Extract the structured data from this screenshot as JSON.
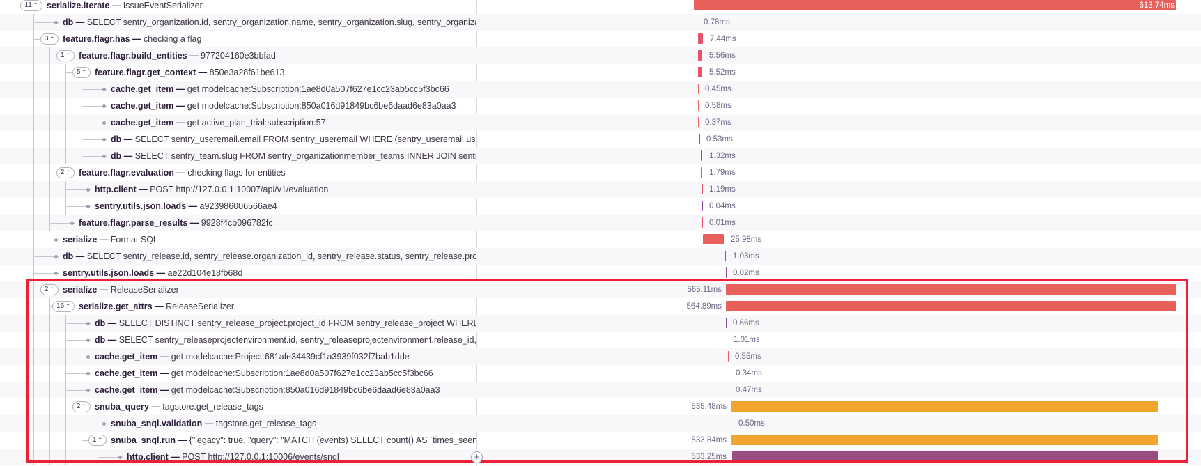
{
  "colors": {
    "red": "#e9605a",
    "pink": "#e45369",
    "purple": "#8a4d9e",
    "orange": "#f2a52e",
    "magenta": "#9a4d82",
    "highlight": "#ed2136"
  },
  "rows": [
    {
      "count": "11",
      "op": "serialize.iterate",
      "desc": "IssueEventSerializer",
      "dur": "613.74ms",
      "color": "red"
    },
    {
      "count": "",
      "op": "db",
      "desc": "SELECT sentry_organization.id, sentry_organization.name, sentry_organization.slug, sentry_organization.status",
      "dur": "0.78ms",
      "color": "purple"
    },
    {
      "count": "3",
      "op": "feature.flagr.has",
      "desc": "checking a flag",
      "dur": "7.44ms",
      "color": "pink"
    },
    {
      "count": "1",
      "op": "feature.flagr.build_entities",
      "desc": "977204160e3bbfad",
      "dur": "5.56ms",
      "color": "pink"
    },
    {
      "count": "5",
      "op": "feature.flagr.get_context",
      "desc": "850e3a28f61be613",
      "dur": "5.52ms",
      "color": "pink"
    },
    {
      "count": "",
      "op": "cache.get_item",
      "desc": "get modelcache:Subscription:1ae8d0a507f627e1cc23ab5cc5f3bc66",
      "dur": "0.45ms",
      "color": "red"
    },
    {
      "count": "",
      "op": "cache.get_item",
      "desc": "get modelcache:Subscription:850a016d91849bc6be6daad6e83a0aa3",
      "dur": "0.58ms",
      "color": "red"
    },
    {
      "count": "",
      "op": "cache.get_item",
      "desc": "get active_plan_trial:subscription:57",
      "dur": "0.37ms",
      "color": "red"
    },
    {
      "count": "",
      "op": "db",
      "desc": "SELECT sentry_useremail.email FROM sentry_useremail WHERE (sentry_useremail.user_id = %s AND sentry_useremail.is_verified)",
      "dur": "0.53ms",
      "color": "purple"
    },
    {
      "count": "",
      "op": "db",
      "desc": "SELECT sentry_team.slug FROM sentry_organizationmember_teams INNER JOIN sentry_team ON (sentry_organizationmember_teams.team_id)",
      "dur": "1.32ms",
      "color": "purple"
    },
    {
      "count": "2",
      "op": "feature.flagr.evaluation",
      "desc": "checking flags for entities",
      "dur": "1.79ms",
      "color": "pink"
    },
    {
      "count": "",
      "op": "http.client",
      "desc": "POST http://127.0.0.1:10007/api/v1/evaluation",
      "dur": "1.19ms",
      "color": "pink"
    },
    {
      "count": "",
      "op": "sentry.utils.json.loads",
      "desc": "a923986006566ae4",
      "dur": "0.04ms",
      "color": "purple"
    },
    {
      "count": "",
      "op": "feature.flagr.parse_results",
      "desc": "9928f4cb096782fc",
      "dur": "0.01ms",
      "color": "pink"
    },
    {
      "count": "",
      "op": "serialize",
      "desc": "Format SQL",
      "dur": "25.98ms",
      "color": "red"
    },
    {
      "count": "",
      "op": "db",
      "desc": "SELECT sentry_release.id, sentry_release.organization_id, sentry_release.status, sentry_release.project_id",
      "dur": "1.03ms",
      "color": "purple"
    },
    {
      "count": "",
      "op": "sentry.utils.json.loads",
      "desc": "ae22d104e18fb68d",
      "dur": "0.02ms",
      "color": "purple"
    },
    {
      "count": "2",
      "op": "serialize",
      "desc": "ReleaseSerializer",
      "dur": "565.11ms",
      "color": "red"
    },
    {
      "count": "16",
      "op": "serialize.get_attrs",
      "desc": "ReleaseSerializer",
      "dur": "564.89ms",
      "color": "red"
    },
    {
      "count": "",
      "op": "db",
      "desc": "SELECT DISTINCT sentry_release_project.project_id FROM sentry_release_project WHERE sentry_release_project.release_id",
      "dur": "0.66ms",
      "color": "purple"
    },
    {
      "count": "",
      "op": "db",
      "desc": "SELECT sentry_releaseprojectenvironment.id, sentry_releaseprojectenvironment.release_id, sentry_releaseprojectenvironment",
      "dur": "1.01ms",
      "color": "purple"
    },
    {
      "count": "",
      "op": "cache.get_item",
      "desc": "get modelcache:Project:681afe34439cf1a3939f032f7bab1dde",
      "dur": "0.55ms",
      "color": "red"
    },
    {
      "count": "",
      "op": "cache.get_item",
      "desc": "get modelcache:Subscription:1ae8d0a507f627e1cc23ab5cc5f3bc66",
      "dur": "0.34ms",
      "color": "red"
    },
    {
      "count": "",
      "op": "cache.get_item",
      "desc": "get modelcache:Subscription:850a016d91849bc6be6daad6e83a0aa3",
      "dur": "0.47ms",
      "color": "red"
    },
    {
      "count": "2",
      "op": "snuba_query",
      "desc": "tagstore.get_release_tags",
      "dur": "535.48ms",
      "color": "orange"
    },
    {
      "count": "",
      "op": "snuba_snql.validation",
      "desc": "tagstore.get_release_tags",
      "dur": "0.50ms",
      "color": "orange"
    },
    {
      "count": "1",
      "op": "snuba_snql.run",
      "desc": "{\"legacy\": true, \"query\": \"MATCH (events) SELECT count() AS `times_seen`, min(timestamp) AS `first_seen`",
      "dur": "533.84ms",
      "color": "orange"
    },
    {
      "count": "",
      "op": "http.client",
      "desc": "POST http://127.0.0.1:10006/events/snql",
      "dur": "533.25ms",
      "color": "magenta"
    }
  ]
}
